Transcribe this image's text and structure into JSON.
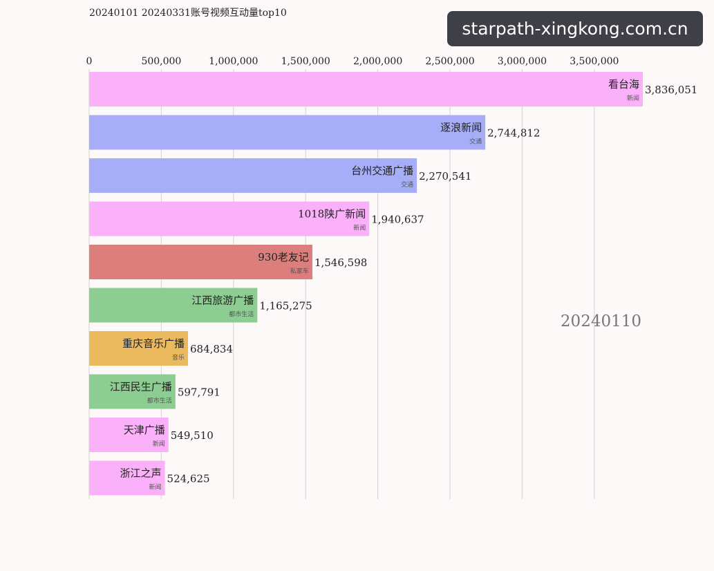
{
  "title": "20240101  20240331账号视频互动量top10",
  "watermark": "starpath-xingkong.com.cn",
  "current_date": "20240110",
  "chart_data": {
    "type": "bar",
    "orientation": "horizontal",
    "title": "20240101  20240331账号视频互动量top10",
    "xlim": [
      0,
      3836051
    ],
    "x_ticks": [
      0,
      500000,
      1000000,
      1500000,
      2000000,
      2500000,
      3000000,
      3500000
    ],
    "x_tick_labels": [
      "0",
      "500,000",
      "1,000,000",
      "1,500,000",
      "2,000,000",
      "2,500,000",
      "3,000,000",
      "3,500,000"
    ],
    "grid": true,
    "axis_position": "top",
    "bars": [
      {
        "name": "看台海",
        "category": "新闻",
        "value": 3836051,
        "value_label": "3,836,051",
        "color": "#fbb1f9"
      },
      {
        "name": "逐浪新闻",
        "category": "交通",
        "value": 2744812,
        "value_label": "2,744,812",
        "color": "#a6aef7"
      },
      {
        "name": "台州交通广播",
        "category": "交通",
        "value": 2270541,
        "value_label": "2,270,541",
        "color": "#a6aef7"
      },
      {
        "name": "1018陕广新闻",
        "category": "新闻",
        "value": 1940637,
        "value_label": "1,940,637",
        "color": "#fbb1f9"
      },
      {
        "name": "930老友记",
        "category": "私家车",
        "value": 1546598,
        "value_label": "1,546,598",
        "color": "#dc7e7b"
      },
      {
        "name": "江西旅游广播",
        "category": "都市生活",
        "value": 1165275,
        "value_label": "1,165,275",
        "color": "#8dcd91"
      },
      {
        "name": "重庆音乐广播",
        "category": "音乐",
        "value": 684834,
        "value_label": "684,834",
        "color": "#ecba5e"
      },
      {
        "name": "江西民生广播",
        "category": "都市生活",
        "value": 597791,
        "value_label": "597,791",
        "color": "#8dcd91"
      },
      {
        "name": "天津广播",
        "category": "新闻",
        "value": 549510,
        "value_label": "549,510",
        "color": "#fbb1f9"
      },
      {
        "name": "浙江之声",
        "category": "新闻",
        "value": 524625,
        "value_label": "524,625",
        "color": "#fbb1f9"
      }
    ]
  }
}
